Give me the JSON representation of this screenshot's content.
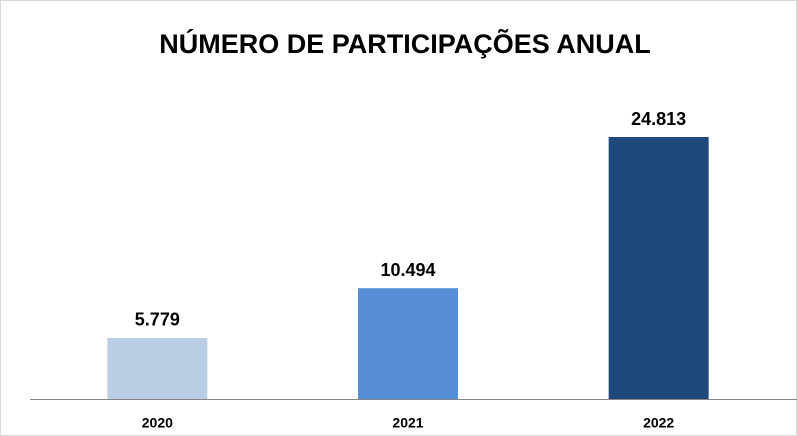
{
  "chart_data": {
    "type": "bar",
    "title": "NÚMERO DE PARTICIPAÇÕES ANUAL",
    "categories": [
      "2020",
      "2021",
      "2022"
    ],
    "values": [
      5779,
      10494,
      24813
    ],
    "value_labels": [
      "5.779",
      "10.494",
      "24.813"
    ],
    "colors": [
      "#b9cde5",
      "#558ed5",
      "#1f487c"
    ]
  }
}
